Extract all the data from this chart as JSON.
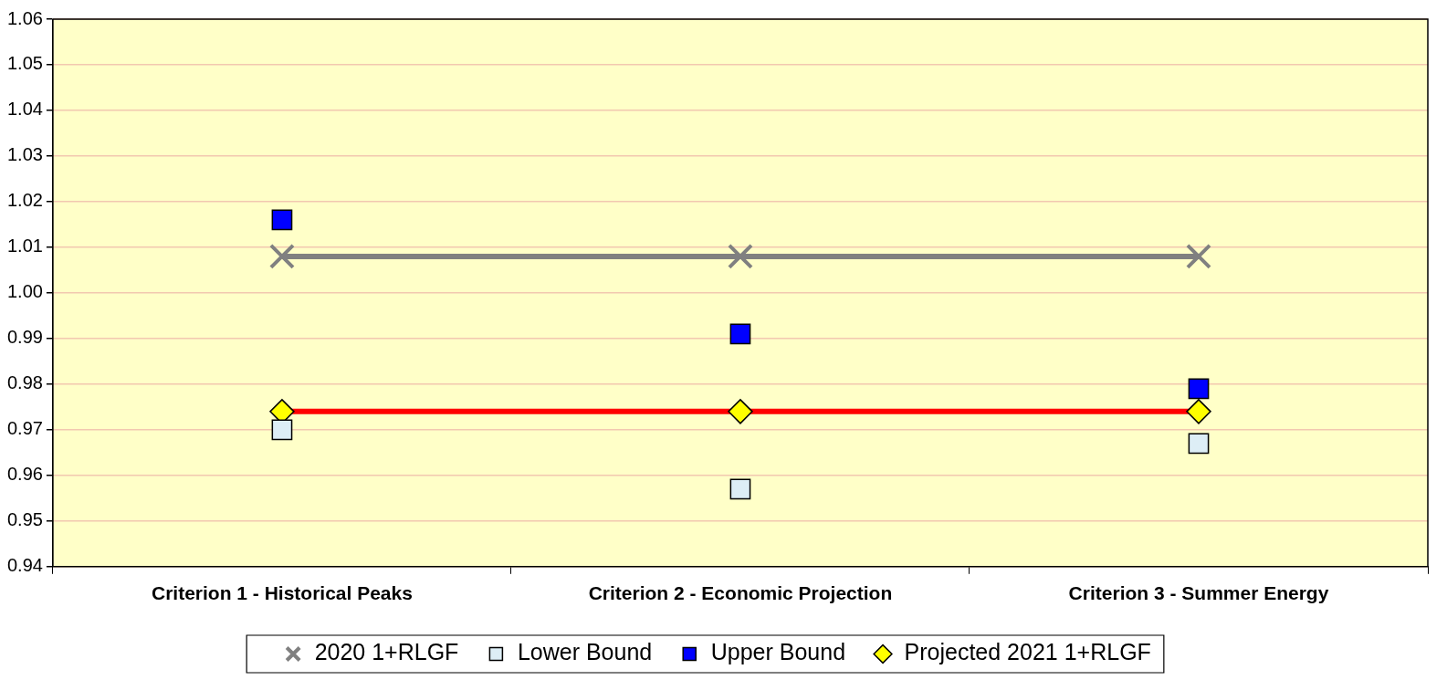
{
  "chart_data": {
    "type": "line",
    "categories": [
      "Criterion 1 - Historical Peaks",
      "Criterion 2 - Economic Projection",
      "Criterion 3 - Summer Energy"
    ],
    "series": [
      {
        "name": "2020 1+RLGF",
        "color": "#808080",
        "marker": "cross",
        "values": [
          1.008,
          1.008,
          1.008
        ]
      },
      {
        "name": "Lower Bound",
        "type": "scatter",
        "color": "#ddeef6",
        "marker": "square",
        "values": [
          0.97,
          0.957,
          0.967
        ]
      },
      {
        "name": "Upper Bound",
        "type": "scatter",
        "color": "#0000ff",
        "marker": "square",
        "values": [
          1.016,
          0.991,
          0.979
        ]
      },
      {
        "name": "Projected 2021 1+RLGF",
        "color": "#ff0000",
        "colors": [
          "#ffff00",
          "#ffff00",
          "#ffff00"
        ],
        "marker": "diamond",
        "values": [
          0.974,
          0.974,
          0.974
        ]
      }
    ],
    "ylim": [
      0.94,
      1.06
    ],
    "yticks": [
      {
        "value": 0.94,
        "label": "0.94"
      },
      {
        "value": 0.95,
        "label": "0.95"
      },
      {
        "value": 0.96,
        "label": "0.96"
      },
      {
        "value": 0.97,
        "label": "0.97"
      },
      {
        "value": 0.98,
        "label": "0.98"
      },
      {
        "value": 0.99,
        "label": "0.99"
      },
      {
        "value": 1.0,
        "label": "1.00"
      },
      {
        "value": 1.01,
        "label": "1.01"
      },
      {
        "value": 1.02,
        "label": "1.02"
      },
      {
        "value": 1.03,
        "label": "1.03"
      },
      {
        "value": 1.04,
        "label": "1.04"
      },
      {
        "value": 1.05,
        "label": "1.05"
      },
      {
        "value": 1.06,
        "label": "1.06"
      }
    ],
    "grid": "y",
    "legend": "bottom"
  }
}
